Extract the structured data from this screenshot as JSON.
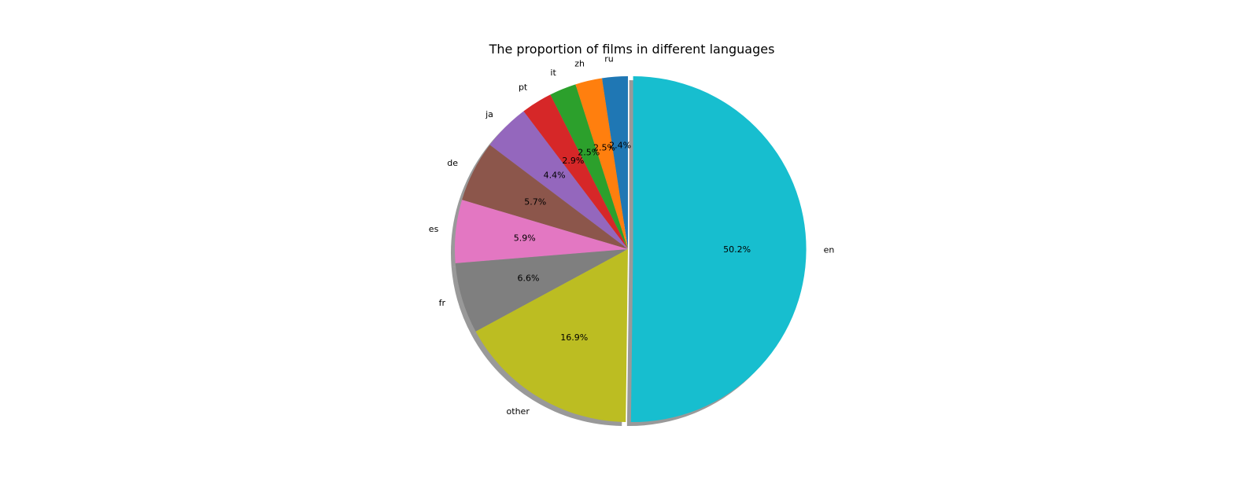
{
  "chart_data": {
    "type": "pie",
    "title": "The proportion of films in different languages",
    "slices": [
      {
        "label": "ru",
        "value": 2.4,
        "pct_text": "2.4%",
        "color": "#1f77b4"
      },
      {
        "label": "zh",
        "value": 2.5,
        "pct_text": "2.5%",
        "color": "#ff7f0e"
      },
      {
        "label": "it",
        "value": 2.5,
        "pct_text": "2.5%",
        "color": "#2ca02c"
      },
      {
        "label": "pt",
        "value": 2.9,
        "pct_text": "2.9%",
        "color": "#d62728"
      },
      {
        "label": "ja",
        "value": 4.4,
        "pct_text": "4.4%",
        "color": "#9467bd"
      },
      {
        "label": "de",
        "value": 5.7,
        "pct_text": "5.7%",
        "color": "#8c564b"
      },
      {
        "label": "es",
        "value": 5.9,
        "pct_text": "5.9%",
        "color": "#e377c2"
      },
      {
        "label": "fr",
        "value": 6.6,
        "pct_text": "6.6%",
        "color": "#7f7f7f"
      },
      {
        "label": "other",
        "value": 16.9,
        "pct_text": "16.9%",
        "color": "#bcbd22"
      },
      {
        "label": "en",
        "value": 50.2,
        "pct_text": "50.2%",
        "color": "#17becf",
        "exploded": true
      }
    ],
    "start_angle_deg": 90,
    "direction": "counterclockwise",
    "shadow": true,
    "legend": "none"
  }
}
